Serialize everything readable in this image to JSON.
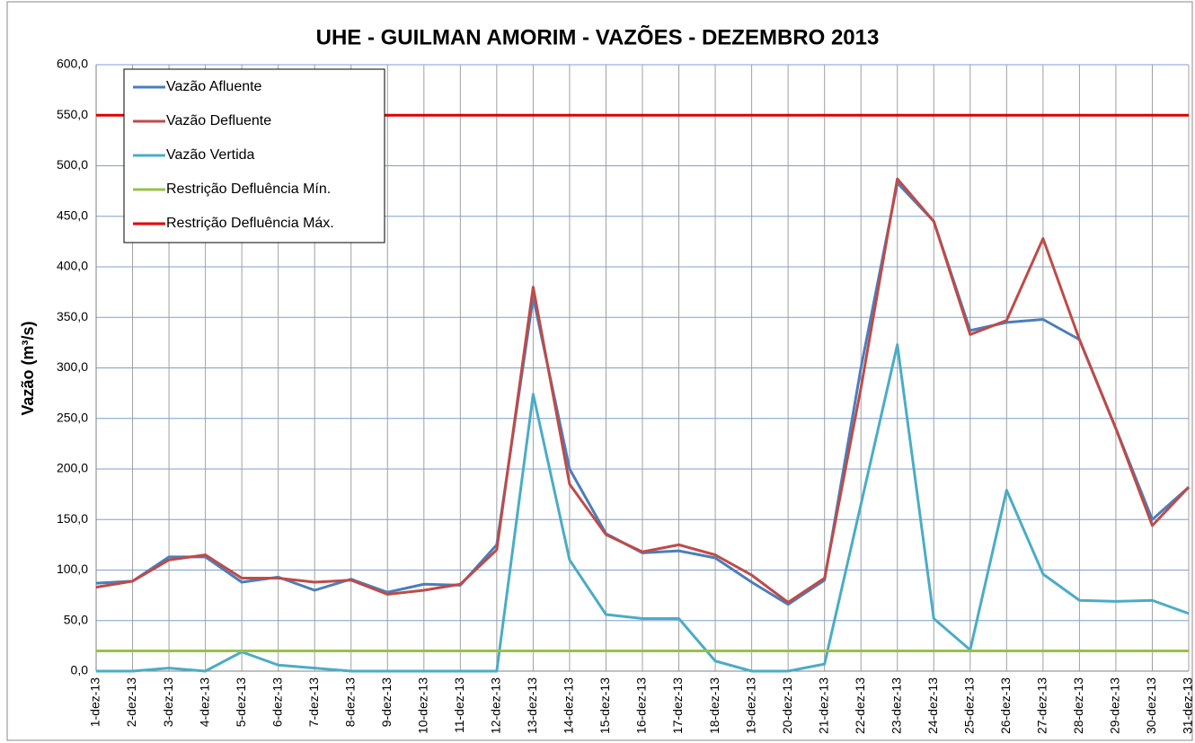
{
  "chart_data": {
    "type": "line",
    "title": "UHE - GUILMAN AMORIM - VAZÕES - DEZEMBRO 2013",
    "y_label": "Vazão (m³/s)",
    "categories": [
      "1-dez-13",
      "2-dez-13",
      "3-dez-13",
      "4-dez-13",
      "5-dez-13",
      "6-dez-13",
      "7-dez-13",
      "8-dez-13",
      "9-dez-13",
      "10-dez-13",
      "11-dez-13",
      "12-dez-13",
      "13-dez-13",
      "14-dez-13",
      "15-dez-13",
      "16-dez-13",
      "17-dez-13",
      "18-dez-13",
      "19-dez-13",
      "20-dez-13",
      "21-dez-13",
      "22-dez-13",
      "23-dez-13",
      "24-dez-13",
      "25-dez-13",
      "26-dez-13",
      "27-dez-13",
      "28-dez-13",
      "29-dez-13",
      "30-dez-13",
      "31-dez-13"
    ],
    "series": [
      {
        "name": "Vazão Afluente",
        "color": "#4a7ebb",
        "values": [
          87,
          89,
          113,
          113,
          88,
          93,
          80,
          91,
          78,
          86,
          85,
          125,
          370,
          200,
          136,
          117,
          119,
          112,
          88,
          66,
          90,
          300,
          483,
          445,
          337,
          345,
          348,
          328,
          240,
          150,
          182
        ]
      },
      {
        "name": "Vazão Defluente",
        "color": "#be4b48",
        "values": [
          83,
          89,
          110,
          115,
          92,
          92,
          88,
          90,
          76,
          80,
          86,
          120,
          380,
          185,
          135,
          118,
          125,
          115,
          95,
          68,
          92,
          280,
          487,
          445,
          333,
          347,
          428,
          328,
          240,
          144,
          182
        ]
      },
      {
        "name": "Vazão Vertida",
        "color": "#4bacc6",
        "values": [
          0,
          0,
          3,
          0,
          19,
          6,
          3,
          0,
          0,
          0,
          0,
          0,
          274,
          110,
          56,
          52,
          52,
          10,
          0,
          0,
          7,
          165,
          323,
          52,
          21,
          179,
          96,
          70,
          69,
          70,
          57
        ]
      },
      {
        "name": "Restrição Defluência Mín.",
        "color": "#98c04c",
        "values": [
          20,
          20,
          20,
          20,
          20,
          20,
          20,
          20,
          20,
          20,
          20,
          20,
          20,
          20,
          20,
          20,
          20,
          20,
          20,
          20,
          20,
          20,
          20,
          20,
          20,
          20,
          20,
          20,
          20,
          20,
          20
        ]
      },
      {
        "name": "Restrição Defluência Máx.",
        "color": "#e00000",
        "values": [
          550,
          550,
          550,
          550,
          550,
          550,
          550,
          550,
          550,
          550,
          550,
          550,
          550,
          550,
          550,
          550,
          550,
          550,
          550,
          550,
          550,
          550,
          550,
          550,
          550,
          550,
          550,
          550,
          550,
          550,
          550
        ]
      }
    ],
    "ylim": [
      0,
      600
    ],
    "yticks": [
      {
        "value": 0,
        "label": "0,0"
      },
      {
        "value": 50,
        "label": "50,0"
      },
      {
        "value": 100,
        "label": "100,0"
      },
      {
        "value": 150,
        "label": "150,0"
      },
      {
        "value": 200,
        "label": "200,0"
      },
      {
        "value": 250,
        "label": "250,0"
      },
      {
        "value": 300,
        "label": "300,0"
      },
      {
        "value": 350,
        "label": "350,0"
      },
      {
        "value": 400,
        "label": "400,0"
      },
      {
        "value": 450,
        "label": "450,0"
      },
      {
        "value": 500,
        "label": "500,0"
      },
      {
        "value": 550,
        "label": "550,0"
      },
      {
        "value": 600,
        "label": "600,0"
      }
    ],
    "grid": true,
    "legend": "upper left"
  }
}
